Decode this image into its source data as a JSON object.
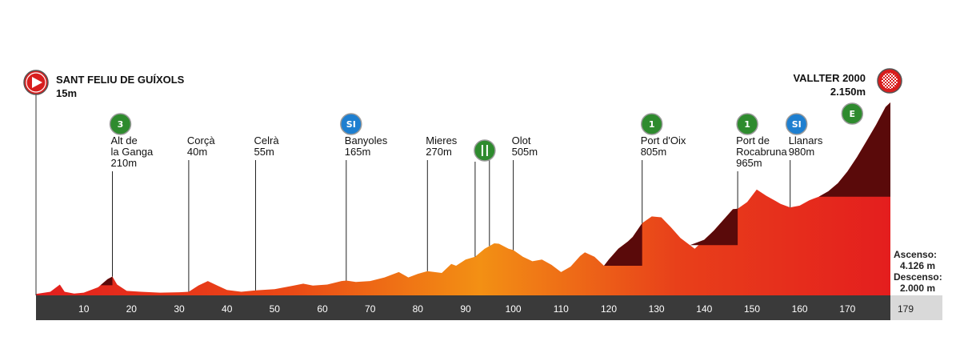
{
  "colors": {
    "axis_bar": "#3a3a3a",
    "finish_box": "#d9d9d9",
    "climb_dark": "#5a0a0a",
    "red": "#e41e1e",
    "orange": "#f08a10",
    "cat_green": "#2e8b2e",
    "sprint_blue": "#1e7fd0",
    "start_red": "#d81e1e"
  },
  "start": {
    "name": "SANT FELIU DE GUÍXOLS",
    "elev": "15m",
    "icon": "start-flag-icon"
  },
  "finish": {
    "name": "VALLTER 2000",
    "elev": "2.150m",
    "icon": "finish-checkered-icon"
  },
  "totals": {
    "ascent_label": "Ascenso:",
    "ascent": "4.126 m",
    "descent_label": "Descenso:",
    "descent": "2.000 m",
    "distance": "179"
  },
  "chart_data": {
    "type": "area",
    "xlabel": "",
    "ylabel": "",
    "xlim": [
      0,
      179
    ],
    "ylim": [
      0,
      2150
    ],
    "x_ticks": [
      "10",
      "20",
      "30",
      "40",
      "50",
      "60",
      "70",
      "80",
      "90",
      "100",
      "110",
      "120",
      "130",
      "140",
      "150",
      "160",
      "170"
    ],
    "profile": [
      [
        0,
        15
      ],
      [
        3,
        40
      ],
      [
        5,
        120
      ],
      [
        6,
        40
      ],
      [
        8,
        20
      ],
      [
        10,
        30
      ],
      [
        13,
        90
      ],
      [
        15,
        180
      ],
      [
        16,
        210
      ],
      [
        17,
        120
      ],
      [
        19,
        50
      ],
      [
        22,
        40
      ],
      [
        26,
        30
      ],
      [
        30,
        35
      ],
      [
        32,
        40
      ],
      [
        34,
        110
      ],
      [
        36,
        160
      ],
      [
        38,
        110
      ],
      [
        40,
        60
      ],
      [
        43,
        40
      ],
      [
        46,
        55
      ],
      [
        50,
        70
      ],
      [
        54,
        110
      ],
      [
        56,
        130
      ],
      [
        58,
        110
      ],
      [
        61,
        120
      ],
      [
        64,
        160
      ],
      [
        65,
        165
      ],
      [
        67,
        150
      ],
      [
        70,
        160
      ],
      [
        73,
        200
      ],
      [
        76,
        260
      ],
      [
        78,
        200
      ],
      [
        80,
        240
      ],
      [
        82,
        270
      ],
      [
        85,
        250
      ],
      [
        87,
        350
      ],
      [
        88,
        330
      ],
      [
        90,
        400
      ],
      [
        92,
        430
      ],
      [
        94,
        520
      ],
      [
        96,
        580
      ],
      [
        97,
        575
      ],
      [
        99,
        520
      ],
      [
        100,
        505
      ],
      [
        102,
        430
      ],
      [
        104,
        380
      ],
      [
        106,
        400
      ],
      [
        108,
        340
      ],
      [
        110,
        260
      ],
      [
        112,
        320
      ],
      [
        114,
        440
      ],
      [
        115,
        480
      ],
      [
        117,
        430
      ],
      [
        119,
        330
      ],
      [
        120,
        400
      ],
      [
        122,
        520
      ],
      [
        124,
        600
      ],
      [
        125,
        650
      ],
      [
        127,
        805
      ],
      [
        129,
        880
      ],
      [
        131,
        870
      ],
      [
        133,
        760
      ],
      [
        135,
        640
      ],
      [
        137,
        560
      ],
      [
        138,
        520
      ],
      [
        140,
        620
      ],
      [
        142,
        720
      ],
      [
        144,
        840
      ],
      [
        146,
        960
      ],
      [
        147,
        965
      ],
      [
        149,
        1040
      ],
      [
        151,
        1180
      ],
      [
        153,
        1110
      ],
      [
        155,
        1050
      ],
      [
        156,
        1020
      ],
      [
        158,
        980
      ],
      [
        160,
        1000
      ],
      [
        162,
        1060
      ],
      [
        164,
        1100
      ],
      [
        166,
        1160
      ],
      [
        168,
        1250
      ],
      [
        170,
        1380
      ],
      [
        172,
        1540
      ],
      [
        174,
        1720
      ],
      [
        176,
        1900
      ],
      [
        178,
        2100
      ],
      [
        179,
        2150
      ]
    ],
    "climbs": [
      [
        13.5,
        16
      ],
      [
        119,
        127
      ],
      [
        137,
        147
      ],
      [
        160,
        179
      ]
    ],
    "sprint_cut_elev": 1100,
    "points": [
      {
        "km": 16,
        "elev": 210,
        "name_lines": [
          "Alt de",
          "la Ganga"
        ],
        "elev_label": "210m",
        "badge": "3",
        "badge_type": "category",
        "icon": "category-3-climb-icon"
      },
      {
        "km": 32,
        "elev": 40,
        "name_lines": [
          "Corçà"
        ],
        "elev_label": "40m",
        "badge": "",
        "badge_type": "",
        "icon": ""
      },
      {
        "km": 46,
        "elev": 55,
        "name_lines": [
          "Celrà"
        ],
        "elev_label": "55m",
        "badge": "",
        "badge_type": "",
        "icon": ""
      },
      {
        "km": 65,
        "elev": 165,
        "name_lines": [
          "Banyoles"
        ],
        "elev_label": "165m",
        "badge": "SI",
        "badge_type": "sprint",
        "icon": "intermediate-sprint-icon"
      },
      {
        "km": 82,
        "elev": 270,
        "name_lines": [
          "Mieres"
        ],
        "elev_label": "270m",
        "badge": "",
        "badge_type": "",
        "icon": ""
      },
      {
        "km": 92,
        "elev": 430,
        "name_lines": [],
        "elev_label": "",
        "badge": "",
        "badge_type": "feed",
        "icon": "feed-zone-icon"
      },
      {
        "km": 95,
        "elev": 560,
        "name_lines": [],
        "elev_label": "",
        "badge": "",
        "badge_type": "",
        "icon": ""
      },
      {
        "km": 100,
        "elev": 505,
        "name_lines": [
          "Olot"
        ],
        "elev_label": "505m",
        "badge": "",
        "badge_type": "",
        "icon": ""
      },
      {
        "km": 127,
        "elev": 805,
        "name_lines": [
          "Port d'Oix"
        ],
        "elev_label": "805m",
        "badge": "1",
        "badge_type": "category",
        "icon": "category-1-climb-icon"
      },
      {
        "km": 147,
        "elev": 965,
        "name_lines": [
          "Port de",
          "Rocabruna"
        ],
        "elev_label": "965m",
        "badge": "1",
        "badge_type": "category",
        "icon": "category-1-climb-icon"
      },
      {
        "km": 158,
        "elev": 980,
        "name_lines": [
          "Llanars"
        ],
        "elev_label": "980m",
        "badge": "SI",
        "badge_type": "sprint",
        "icon": "intermediate-sprint-icon"
      },
      {
        "km": 171,
        "elev": 0,
        "name_lines": [],
        "elev_label": "",
        "badge": "E",
        "badge_type": "special",
        "icon": "special-category-climb-icon"
      }
    ]
  }
}
